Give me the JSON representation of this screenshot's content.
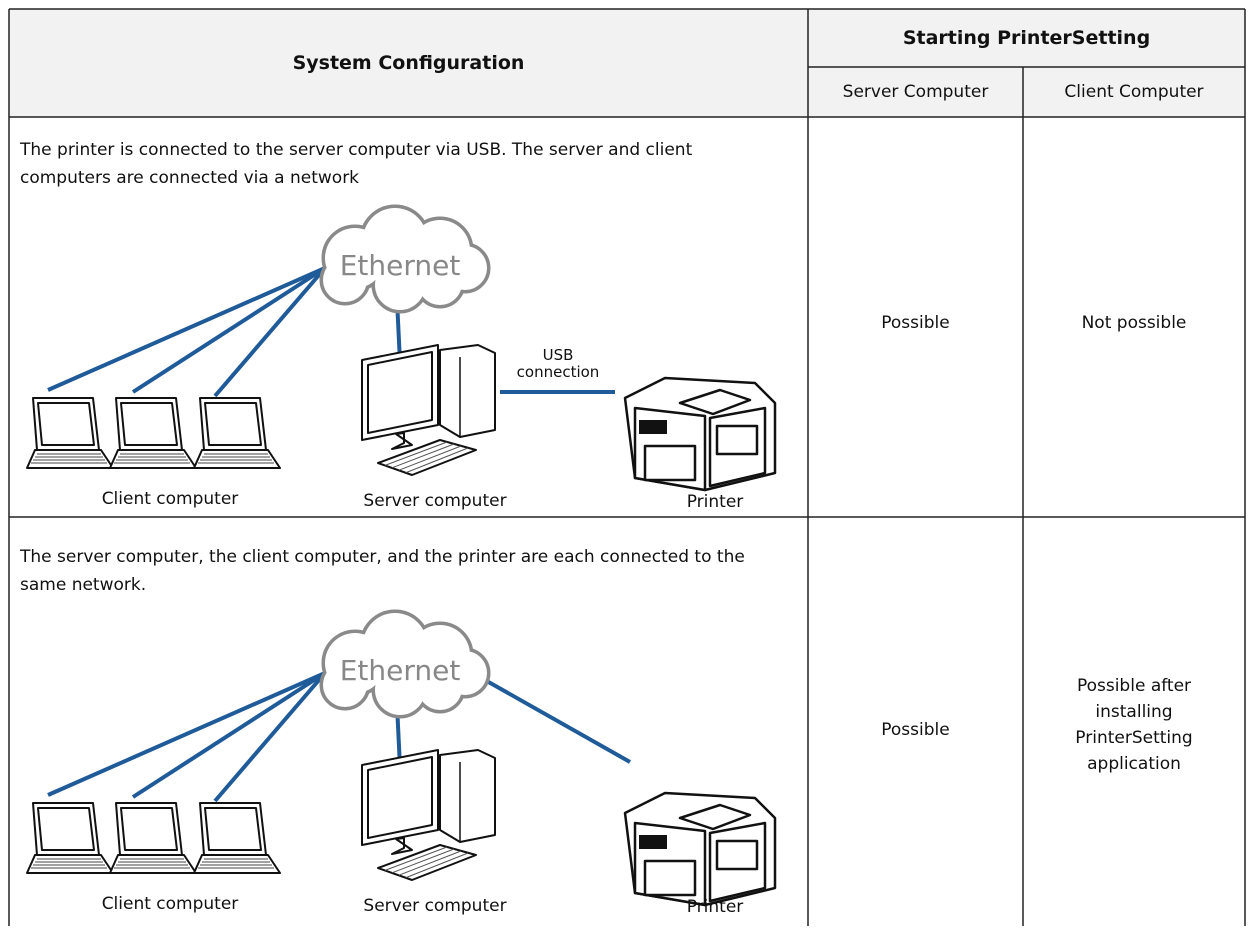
{
  "table": {
    "header": {
      "system_configuration": "System Configuration",
      "starting": "Starting PrinterSetting",
      "server": "Server Computer",
      "client": "Client Computer"
    },
    "rows": [
      {
        "description": "The printer is connected to the server computer via USB. The server and client computers are connected via a network",
        "diagram": {
          "cloud": "Ethernet",
          "link": [
            "USB",
            "connection"
          ],
          "client_label": "Client computer",
          "server_label": "Server computer",
          "printer_label": "Printer"
        },
        "server": "Possible",
        "client": "Not possible"
      },
      {
        "description": "The server computer, the client computer, and the printer are each connected to the same network.",
        "diagram": {
          "cloud": "Ethernet",
          "client_label": "Client computer",
          "server_label": "Server computer",
          "printer_label": "Printer"
        },
        "server": "Possible",
        "client": "Possible after installing PrinterSetting application"
      }
    ]
  }
}
